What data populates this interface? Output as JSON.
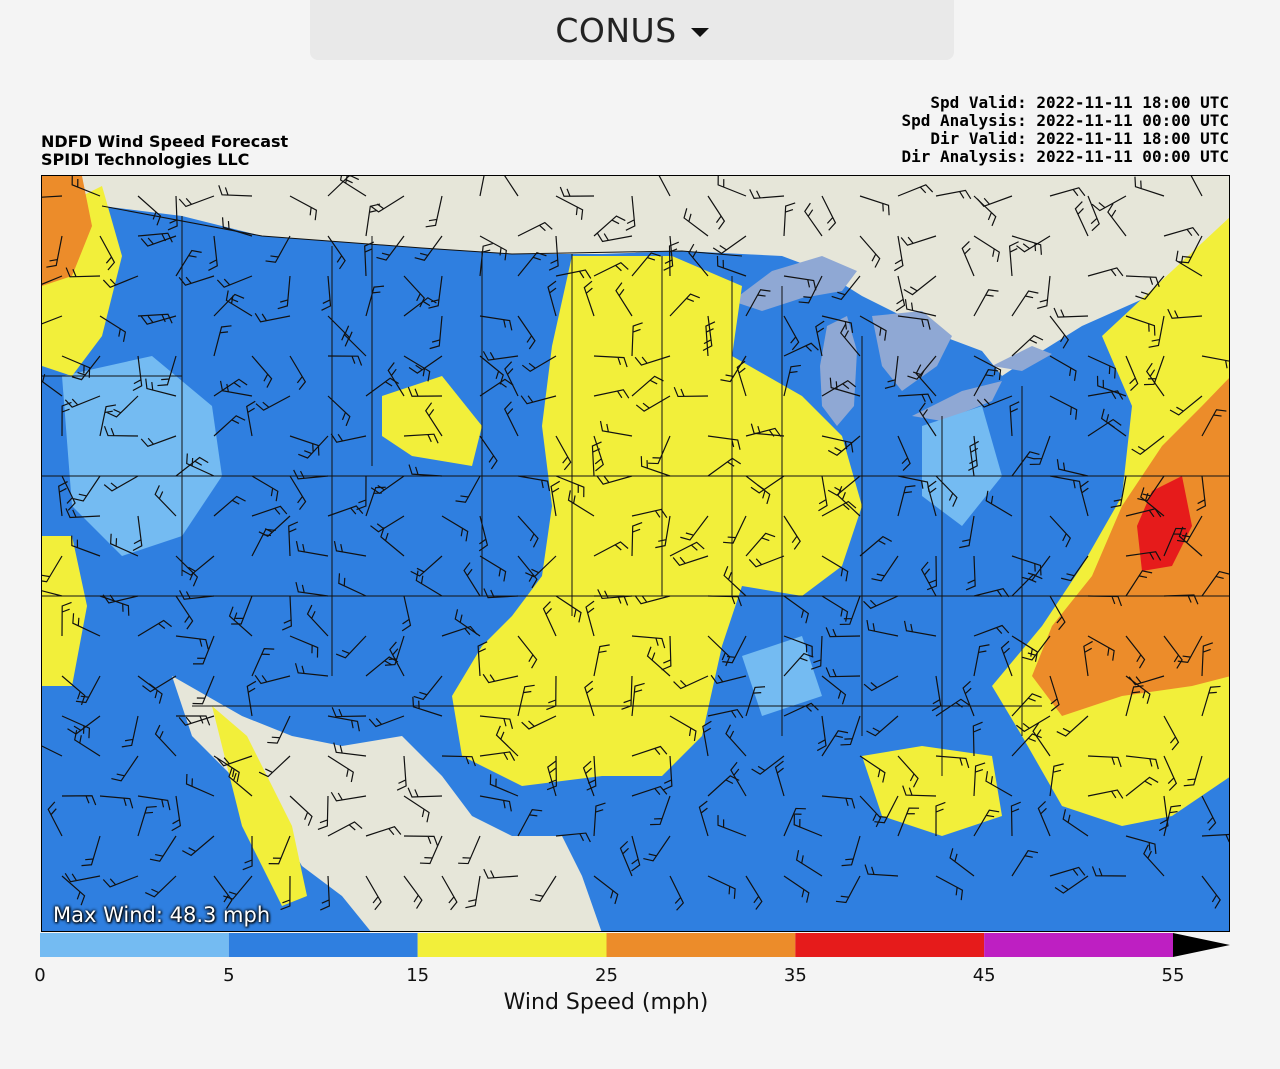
{
  "header": {
    "region_label": "CONUS",
    "dropdown_icon": "caret-down-icon"
  },
  "plot": {
    "title_lines": [
      "NDFD Wind Speed Forecast",
      "SPIDI Technologies LLC"
    ],
    "valid_lines": [
      "Spd Valid: 2022-11-11 18:00 UTC",
      "Spd Analysis: 2022-11-11 00:00 UTC",
      "Dir Valid: 2022-11-11 18:00 UTC",
      "Dir Analysis: 2022-11-11 00:00 UTC"
    ],
    "max_wind": "Max Wind: 48.3 mph"
  },
  "legend": {
    "title": "Wind Speed (mph)",
    "ticks": [
      "0",
      "5",
      "15",
      "25",
      "35",
      "45",
      "55"
    ],
    "bins": [
      {
        "from": 0,
        "to": 5,
        "color": "#74bbf2"
      },
      {
        "from": 5,
        "to": 15,
        "color": "#2f7fe0"
      },
      {
        "from": 15,
        "to": 25,
        "color": "#f2ef3a"
      },
      {
        "from": 25,
        "to": 35,
        "color": "#ec8c2a"
      },
      {
        "from": 35,
        "to": 45,
        "color": "#e61b1b"
      },
      {
        "from": 45,
        "to": 55,
        "color": "#be1fc2"
      }
    ],
    "extend_color": "#000000"
  },
  "colors": {
    "land_outside": "#e6e6d9",
    "water": "#8fa8d4",
    "barb": "#111111"
  }
}
